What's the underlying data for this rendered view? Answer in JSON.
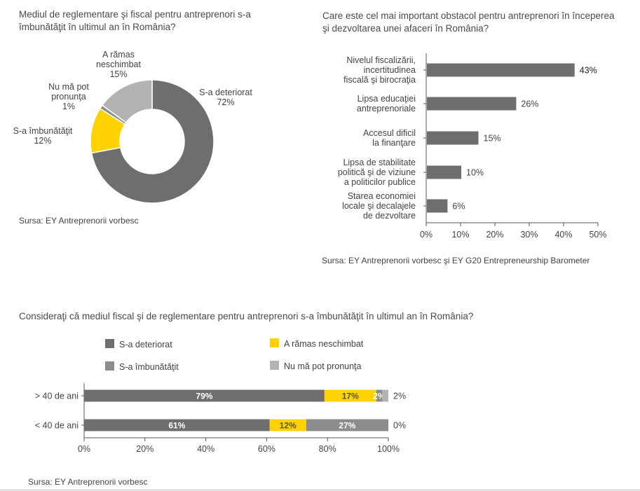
{
  "colors": {
    "dark": "#6e6e6e",
    "mid": "#8c8c8c",
    "light": "#b3b3b3",
    "yellow": "#ffd200",
    "axis": "#555555"
  },
  "chart1": {
    "title": "Mediul de reglementare şi fiscal pentru antreprenori s-a îmbunătăţit în ultimul an în România?",
    "source": "Sursa: EY Antreprenorii vorbesc"
  },
  "chart2": {
    "title": "Care este cel mai important obstacol pentru antreprenori în începerea şi dezvoltarea unei afaceri în România?",
    "source": "Sursa: EY Antreprenorii vorbesc şi EY G20 Entrepreneurship Barometer"
  },
  "chart3": {
    "title": "Consideraţi că mediul fiscal şi de reglementare pentru antreprenori s-a îmbunătăţit în ultimul an în România?",
    "source": "Sursa: EY Antreprenorii vorbesc"
  },
  "chart_data": [
    {
      "type": "pie",
      "donut": true,
      "title": "Mediul de reglementare şi fiscal pentru antreprenori s-a îmbunătăţit în ultimul an în România?",
      "slices": [
        {
          "label": [
            "S-a deteriorat"
          ],
          "value": 72,
          "value_label": "72%",
          "color": "#6e6e6e"
        },
        {
          "label": [
            "S-a îmbunătăţit"
          ],
          "value": 12,
          "value_label": "12%",
          "color": "#ffd200"
        },
        {
          "label": [
            "Nu mă pot",
            "pronunţa"
          ],
          "value": 1,
          "value_label": "1%",
          "color": "#8c8c8c"
        },
        {
          "label": [
            "A rămas",
            "neschimbat"
          ],
          "value": 15,
          "value_label": "15%",
          "color": "#b3b3b3"
        }
      ]
    },
    {
      "type": "bar",
      "orientation": "horizontal",
      "title": "Care este cel mai important obstacol pentru antreprenori în începerea şi dezvoltarea unei afaceri în România?",
      "categories": [
        [
          "Nivelul fiscalizării,",
          "incertitudinea",
          "fiscală şi birocraţia"
        ],
        [
          "Lipsa educaţiei",
          "antreprenoriale"
        ],
        [
          "Accesul dificil",
          "la finanţare"
        ],
        [
          "Lipsa de stabilitate",
          "politică şi de viziune",
          "a politicilor publice"
        ],
        [
          "Starea economiei",
          "locale şi decalajele",
          "de dezvoltare"
        ]
      ],
      "values": [
        43,
        26,
        15,
        10,
        6
      ],
      "value_labels": [
        "43%",
        "26%",
        "15%",
        "10%",
        "6%"
      ],
      "xlim": [
        0,
        50
      ],
      "xticks": [
        "0%",
        "10%",
        "20%",
        "30%",
        "40%",
        "50%"
      ],
      "color": "#6e6e6e"
    },
    {
      "type": "bar",
      "orientation": "horizontal",
      "stacked": true,
      "title": "Consideraţi că mediul fiscal şi de reglementare pentru antreprenori s-a îmbunătăţit în ultimul an în România?",
      "categories": [
        "> 40 de ani",
        "< 40 de ani"
      ],
      "series": [
        {
          "name": "S-a deteriorat",
          "values": [
            79,
            61
          ],
          "color": "#6e6e6e"
        },
        {
          "name": "A rămas neschimbat",
          "values": [
            17,
            12
          ],
          "color": "#ffd200"
        },
        {
          "name": "S-a îmbunătăţit",
          "values": [
            2,
            27
          ],
          "color": "#8c8c8c"
        },
        {
          "name": "Nu mă pot pronunţa",
          "values": [
            2,
            0
          ],
          "color": "#b3b3b3"
        }
      ],
      "segment_labels": [
        [
          "79%",
          "17%",
          "2%",
          "2%"
        ],
        [
          "61%",
          "12%",
          "27%",
          "0%"
        ]
      ],
      "xlim": [
        0,
        100
      ],
      "xticks": [
        "0%",
        "20%",
        "40%",
        "60%",
        "80%",
        "100%"
      ],
      "legend": [
        "S-a deteriorat",
        "A rămas neschimbat",
        "S-a îmbunătăţit",
        "Nu mă pot pronunţa"
      ]
    }
  ]
}
